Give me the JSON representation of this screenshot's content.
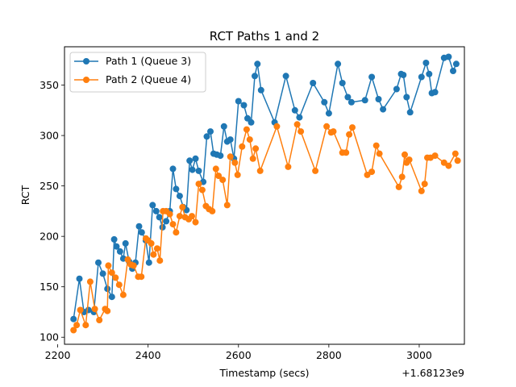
{
  "chart_data": {
    "type": "line",
    "title": "RCT Paths 1 and 2",
    "xlabel": "Timestamp (secs)",
    "ylabel": "RCT",
    "x_offset_label": "+1.68123e9",
    "xlim": [
      2215,
      3100
    ],
    "ylim": [
      93,
      388
    ],
    "x_ticks": [
      2200,
      2400,
      2600,
      2800,
      3000
    ],
    "y_ticks": [
      100,
      150,
      200,
      250,
      300,
      350
    ],
    "grid": false,
    "legend_position": "upper-left",
    "series": [
      {
        "name": "Path 1 (Queue 3)",
        "color": "#1f77b4",
        "points": [
          [
            2235,
            118
          ],
          [
            2248,
            158
          ],
          [
            2258,
            125
          ],
          [
            2268,
            127
          ],
          [
            2280,
            125
          ],
          [
            2290,
            174
          ],
          [
            2300,
            163
          ],
          [
            2310,
            148
          ],
          [
            2320,
            140
          ],
          [
            2325,
            197
          ],
          [
            2330,
            190
          ],
          [
            2338,
            185
          ],
          [
            2345,
            178
          ],
          [
            2350,
            193
          ],
          [
            2358,
            175
          ],
          [
            2365,
            168
          ],
          [
            2372,
            174
          ],
          [
            2380,
            210
          ],
          [
            2386,
            204
          ],
          [
            2395,
            196
          ],
          [
            2402,
            174
          ],
          [
            2410,
            231
          ],
          [
            2418,
            225
          ],
          [
            2425,
            219
          ],
          [
            2432,
            209
          ],
          [
            2440,
            215
          ],
          [
            2448,
            225
          ],
          [
            2455,
            267
          ],
          [
            2462,
            247
          ],
          [
            2470,
            240
          ],
          [
            2478,
            229
          ],
          [
            2485,
            226
          ],
          [
            2492,
            275
          ],
          [
            2498,
            266
          ],
          [
            2505,
            277
          ],
          [
            2512,
            265
          ],
          [
            2522,
            254
          ],
          [
            2530,
            299
          ],
          [
            2538,
            304
          ],
          [
            2545,
            282
          ],
          [
            2552,
            281
          ],
          [
            2560,
            280
          ],
          [
            2568,
            309
          ],
          [
            2575,
            294
          ],
          [
            2582,
            296
          ],
          [
            2590,
            277
          ],
          [
            2600,
            334
          ],
          [
            2612,
            330
          ],
          [
            2620,
            317
          ],
          [
            2628,
            313
          ],
          [
            2636,
            359
          ],
          [
            2642,
            371
          ],
          [
            2650,
            345
          ],
          [
            2680,
            313
          ],
          [
            2705,
            359
          ],
          [
            2725,
            325
          ],
          [
            2735,
            318
          ],
          [
            2765,
            352
          ],
          [
            2790,
            333
          ],
          [
            2800,
            322
          ],
          [
            2820,
            371
          ],
          [
            2830,
            352
          ],
          [
            2842,
            338
          ],
          [
            2850,
            333
          ],
          [
            2880,
            335
          ],
          [
            2895,
            358
          ],
          [
            2910,
            336
          ],
          [
            2920,
            326
          ],
          [
            2950,
            346
          ],
          [
            2960,
            361
          ],
          [
            2965,
            360
          ],
          [
            2972,
            338
          ],
          [
            2980,
            323
          ],
          [
            3005,
            358
          ],
          [
            3015,
            372
          ],
          [
            3022,
            361
          ],
          [
            3028,
            342
          ],
          [
            3035,
            343
          ],
          [
            3055,
            377
          ],
          [
            3065,
            378
          ],
          [
            3075,
            364
          ],
          [
            3082,
            371
          ]
        ]
      },
      {
        "name": "Path 2 (Queue 4)",
        "color": "#ff7f0e",
        "points": [
          [
            2235,
            107
          ],
          [
            2242,
            112
          ],
          [
            2250,
            127
          ],
          [
            2262,
            112
          ],
          [
            2272,
            155
          ],
          [
            2282,
            128
          ],
          [
            2292,
            117
          ],
          [
            2305,
            128
          ],
          [
            2310,
            126
          ],
          [
            2312,
            171
          ],
          [
            2320,
            164
          ],
          [
            2328,
            159
          ],
          [
            2336,
            152
          ],
          [
            2345,
            142
          ],
          [
            2355,
            177
          ],
          [
            2362,
            172
          ],
          [
            2368,
            171
          ],
          [
            2378,
            160
          ],
          [
            2385,
            160
          ],
          [
            2395,
            198
          ],
          [
            2400,
            196
          ],
          [
            2407,
            193
          ],
          [
            2412,
            182
          ],
          [
            2420,
            188
          ],
          [
            2426,
            176
          ],
          [
            2433,
            225
          ],
          [
            2440,
            225
          ],
          [
            2448,
            222
          ],
          [
            2455,
            212
          ],
          [
            2462,
            204
          ],
          [
            2470,
            220
          ],
          [
            2476,
            229
          ],
          [
            2482,
            219
          ],
          [
            2490,
            217
          ],
          [
            2497,
            220
          ],
          [
            2505,
            214
          ],
          [
            2512,
            252
          ],
          [
            2520,
            246
          ],
          [
            2528,
            230
          ],
          [
            2535,
            227
          ],
          [
            2542,
            225
          ],
          [
            2550,
            267
          ],
          [
            2556,
            260
          ],
          [
            2565,
            256
          ],
          [
            2575,
            231
          ],
          [
            2582,
            279
          ],
          [
            2592,
            273
          ],
          [
            2598,
            261
          ],
          [
            2608,
            289
          ],
          [
            2618,
            306
          ],
          [
            2625,
            296
          ],
          [
            2632,
            277
          ],
          [
            2638,
            287
          ],
          [
            2648,
            265
          ],
          [
            2685,
            309
          ],
          [
            2710,
            269
          ],
          [
            2730,
            311
          ],
          [
            2738,
            304
          ],
          [
            2770,
            265
          ],
          [
            2795,
            309
          ],
          [
            2805,
            303
          ],
          [
            2810,
            304
          ],
          [
            2830,
            283
          ],
          [
            2838,
            283
          ],
          [
            2845,
            301
          ],
          [
            2852,
            308
          ],
          [
            2885,
            261
          ],
          [
            2895,
            264
          ],
          [
            2905,
            290
          ],
          [
            2912,
            282
          ],
          [
            2955,
            249
          ],
          [
            2962,
            259
          ],
          [
            2968,
            281
          ],
          [
            2972,
            273
          ],
          [
            2978,
            276
          ],
          [
            3005,
            245
          ],
          [
            3012,
            252
          ],
          [
            3018,
            278
          ],
          [
            3025,
            278
          ],
          [
            3035,
            280
          ],
          [
            3055,
            273
          ],
          [
            3065,
            270
          ],
          [
            3080,
            282
          ],
          [
            3085,
            275
          ]
        ]
      }
    ]
  }
}
